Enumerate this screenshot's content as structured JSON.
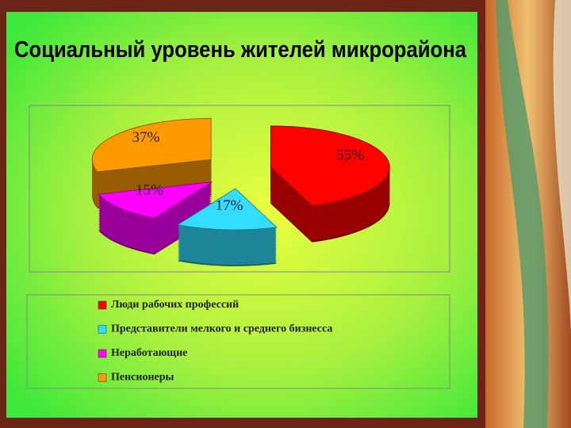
{
  "chart_data": {
    "type": "pie",
    "title": "Социальный уровень  жителей микрорайона",
    "categories": [
      "Люди рабочих профессий",
      "Представители мелкого и среднего бизнесса",
      "Неработающие",
      "Пенсионеры"
    ],
    "values": [
      55,
      17,
      15,
      37
    ],
    "value_labels": [
      "55%",
      "17%",
      "15%",
      "37%"
    ],
    "colors": [
      "#ff0000",
      "#33ddff",
      "#ff00ff",
      "#ff9900"
    ]
  }
}
